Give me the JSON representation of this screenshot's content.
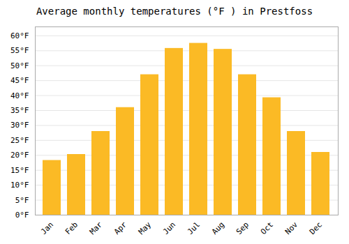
{
  "chart_data": {
    "type": "bar",
    "title": "Average monthly temperatures (°F ) in Prestfoss",
    "categories": [
      "Jan",
      "Feb",
      "Mar",
      "Apr",
      "May",
      "Jun",
      "Jul",
      "Aug",
      "Sep",
      "Oct",
      "Nov",
      "Dec"
    ],
    "values": [
      18.3,
      20.3,
      28.0,
      36.0,
      47.0,
      55.8,
      57.5,
      55.5,
      47.0,
      39.3,
      28.0,
      21.0
    ],
    "color": "#FBBA25",
    "ylim": [
      0,
      63
    ],
    "yticks": [
      {
        "value": 0,
        "label": "0°F"
      },
      {
        "value": 5,
        "label": "5°F"
      },
      {
        "value": 10,
        "label": "10°F"
      },
      {
        "value": 15,
        "label": "15°F"
      },
      {
        "value": 20,
        "label": "20°F"
      },
      {
        "value": 25,
        "label": "25°F"
      },
      {
        "value": 30,
        "label": "30°F"
      },
      {
        "value": 35,
        "label": "35°F"
      },
      {
        "value": 40,
        "label": "40°F"
      },
      {
        "value": 45,
        "label": "45°F"
      },
      {
        "value": 50,
        "label": "50°F"
      },
      {
        "value": 55,
        "label": "55°F"
      },
      {
        "value": 60,
        "label": "60°F"
      }
    ],
    "grid": true
  }
}
